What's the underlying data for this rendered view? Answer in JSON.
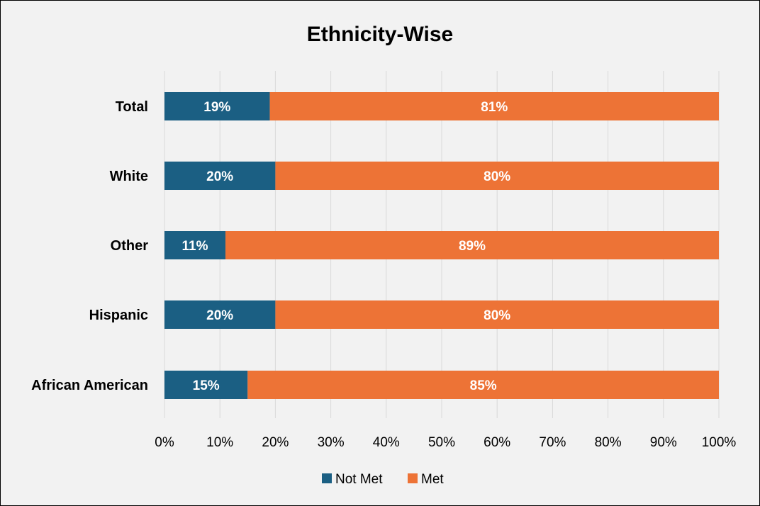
{
  "chart_data": {
    "type": "bar",
    "orientation": "horizontal",
    "stacked": "percent",
    "title": "Ethnicity-Wise",
    "categories": [
      "Total",
      "White",
      "Other",
      "Hispanic",
      "African American"
    ],
    "series": [
      {
        "name": "Not Met",
        "color": "#1b5f83",
        "values": [
          19,
          20,
          11,
          20,
          15
        ],
        "labels": [
          "19%",
          "20%",
          "11%",
          "20%",
          "15%"
        ]
      },
      {
        "name": "Met",
        "color": "#ed7336",
        "values": [
          81,
          80,
          89,
          80,
          85
        ],
        "labels": [
          "81%",
          "80%",
          "89%",
          "80%",
          "85%"
        ]
      }
    ],
    "xlim": [
      0,
      100
    ],
    "xticks": [
      "0%",
      "10%",
      "20%",
      "30%",
      "40%",
      "50%",
      "60%",
      "70%",
      "80%",
      "90%",
      "100%"
    ],
    "grid": "vertical",
    "legend_position": "bottom"
  }
}
